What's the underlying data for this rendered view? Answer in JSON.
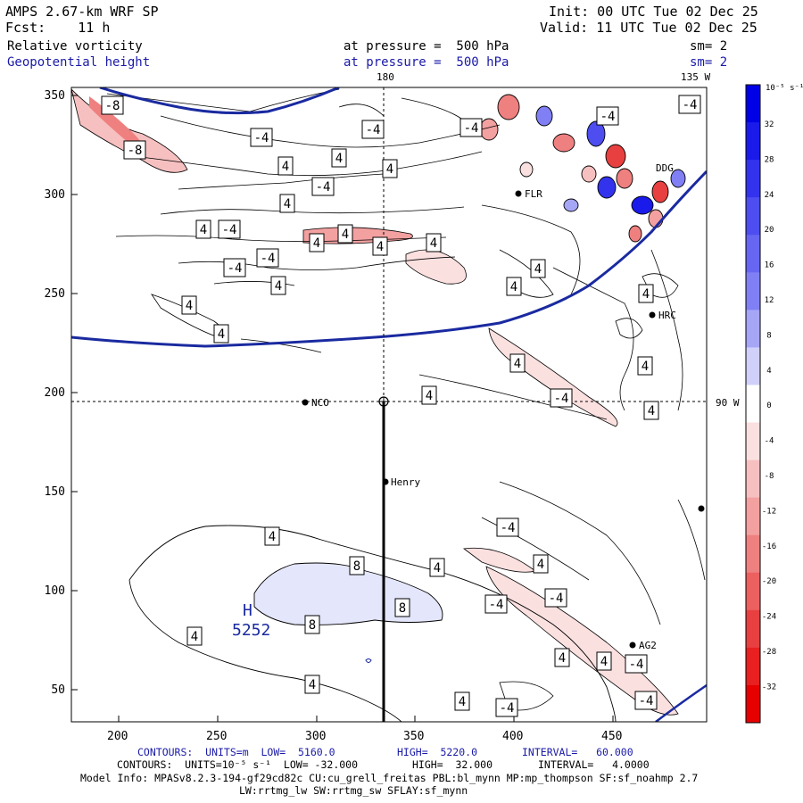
{
  "header": {
    "model": "AMPS 2.67-km WRF SP",
    "fcst": "Fcst:    11 h",
    "init": "Init: 00 UTC Tue 02 Dec 25",
    "valid": "Valid: 11 UTC Tue 02 Dec 25",
    "field1": "Relative vorticity",
    "field2": "Geopotential height",
    "level1": "at pressure =  500 hPa",
    "level2": "at pressure =  500 hPa",
    "sm1": "sm= 2",
    "sm2": "sm= 2"
  },
  "map": {
    "meridian_180": "180",
    "meridian_135w": "135 W",
    "meridian_90w": "90 W",
    "x_ticks": [
      "200",
      "250",
      "300",
      "350",
      "400",
      "450"
    ],
    "y_ticks": [
      "350",
      "300",
      "250",
      "200",
      "150",
      "100",
      "50"
    ],
    "stations": [
      {
        "name": "NCO"
      },
      {
        "name": "Henry"
      },
      {
        "name": "HRC"
      },
      {
        "name": "AG2"
      },
      {
        "name": "DDG"
      },
      {
        "name": "FLR"
      }
    ],
    "high_label": "H",
    "high_value": "5252",
    "contour_labels": [
      "-8",
      "-8",
      "-4",
      "-4",
      "4",
      "4",
      "4",
      "-4",
      "4",
      "-4",
      "4",
      "4",
      "4",
      "-4",
      "4",
      "-4",
      "4",
      "4",
      "4",
      "-4",
      "4",
      "-4",
      "4",
      "-4",
      "4",
      "4",
      "4",
      "-4",
      "4",
      "4",
      "-4",
      "4",
      "8",
      "8",
      "8",
      "4",
      "4",
      "4",
      "-4",
      "-4",
      "4",
      "-4",
      "-4",
      "4",
      "4",
      "4",
      "-4",
      "4"
    ]
  },
  "colorbar": {
    "units": "10⁻⁵ s⁻¹",
    "labels": [
      "32",
      "28",
      "24",
      "20",
      "16",
      "12",
      "8",
      "4",
      "0",
      "-4",
      "-8",
      "-12",
      "-16",
      "-20",
      "-24",
      "-28",
      "-32"
    ],
    "colors": [
      "#0000e6",
      "#1a1aeb",
      "#3333ee",
      "#4d4df0",
      "#6666f2",
      "#8080f4",
      "#a6a6f7",
      "#d0d0fb",
      "#ffffff",
      "#fbe0e0",
      "#f7c0c0",
      "#f3a0a0",
      "#ef8080",
      "#ec6060",
      "#e84040",
      "#e82020",
      "#e60000"
    ]
  },
  "footer": {
    "line1_a": "CONTOURS:  UNITS=m  LOW=  5160.0",
    "line1_b": "HIGH=  5220.0",
    "line1_c": "INTERVAL=   60.000",
    "line2_a": "CONTOURS:  UNITS=10⁻⁵ s⁻¹  LOW= -32.000",
    "line2_b": "HIGH=  32.000",
    "line2_c": "INTERVAL=   4.0000",
    "line3": "Model Info: MPASv8.2.3-194-gf29cd82c CU:cu_grell_freitas PBL:bl_mynn MP:mp_thompson SF:sf_noahmp 2.7",
    "line4": "LW:rrtmg_lw SW:rrtmg_sw SFLAY:sf_mynn"
  }
}
